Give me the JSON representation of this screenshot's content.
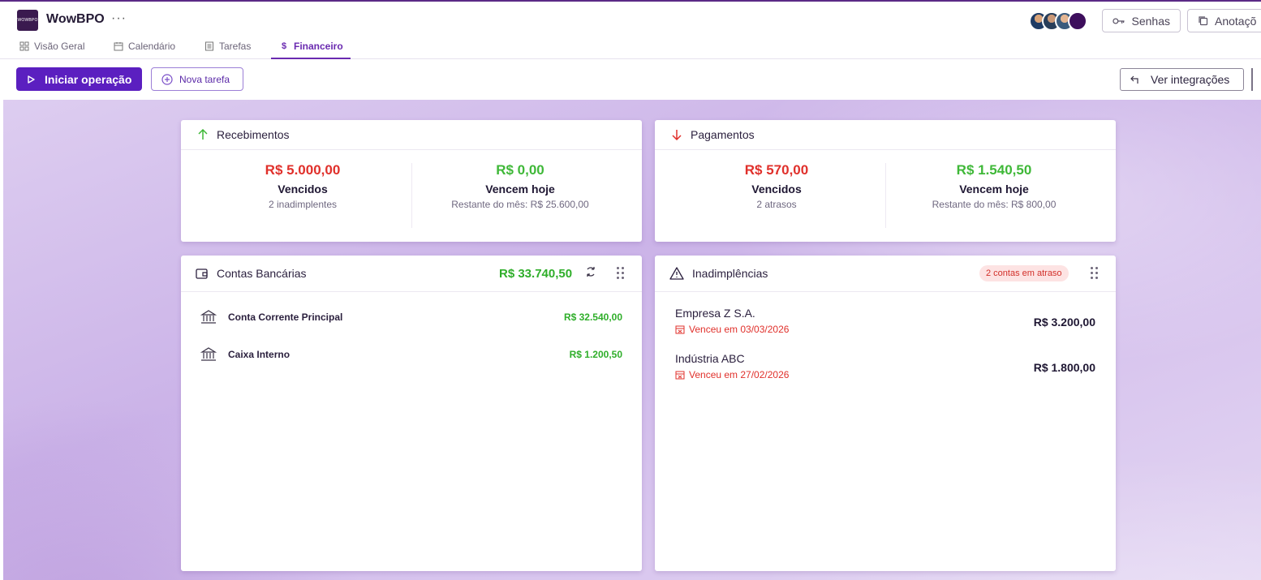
{
  "app": {
    "title": "WowBPO",
    "logo_text": "WOWBPO"
  },
  "header": {
    "buttons": {
      "senhas": "Senhas",
      "anotacoes": "Anotaçõ"
    }
  },
  "tabs": [
    {
      "label": "Visão Geral",
      "icon": "grid-icon"
    },
    {
      "label": "Calendário",
      "icon": "calendar-icon"
    },
    {
      "label": "Tarefas",
      "icon": "list-icon"
    },
    {
      "label": "Financeiro",
      "icon": "dollar-icon",
      "active": true
    }
  ],
  "actions": {
    "start": "Iniciar operação",
    "new_task": "Nova tarefa",
    "integrations": "Ver integrações"
  },
  "recebimentos": {
    "title": "Recebimentos",
    "left": {
      "amount": "R$ 5.000,00",
      "label": "Vencidos",
      "sub": "2 inadimplentes"
    },
    "right": {
      "amount": "R$ 0,00",
      "label": "Vencem hoje",
      "sub": "Restante do mês: R$ 25.600,00"
    }
  },
  "pagamentos": {
    "title": "Pagamentos",
    "left": {
      "amount": "R$ 570,00",
      "label": "Vencidos",
      "sub": "2 atrasos"
    },
    "right": {
      "amount": "R$ 1.540,50",
      "label": "Vencem hoje",
      "sub": "Restante do mês: R$ 800,00"
    }
  },
  "contas": {
    "title": "Contas Bancárias",
    "total": "R$ 33.740,50",
    "items": [
      {
        "name": "Conta Corrente Principal",
        "value": "R$ 32.540,00"
      },
      {
        "name": "Caixa Interno",
        "value": "R$ 1.200,50"
      }
    ]
  },
  "inadimplencias": {
    "title": "Inadimplências",
    "badge": "2 contas em atraso",
    "items": [
      {
        "name": "Empresa Z S.A.",
        "date": "Venceu em 03/03/2026",
        "value": "R$ 3.200,00"
      },
      {
        "name": "Indústria ABC",
        "date": "Venceu em 27/02/2026",
        "value": "R$ 1.800,00"
      }
    ]
  },
  "colors": {
    "primary": "#5b1fc0",
    "danger": "#e0302b",
    "success": "#3fb838"
  }
}
